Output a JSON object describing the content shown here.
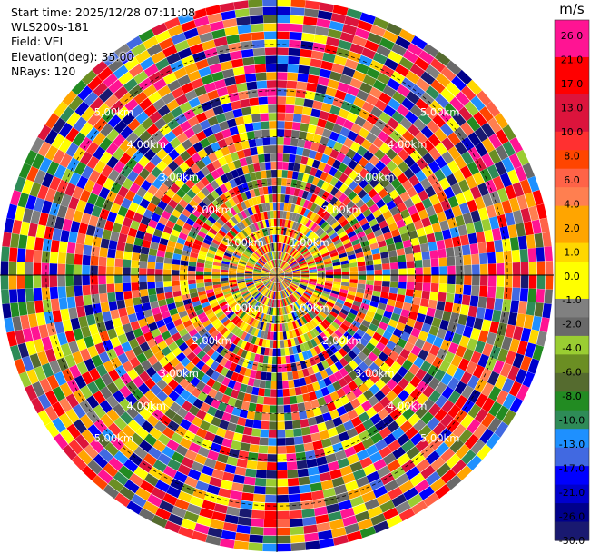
{
  "info": {
    "start_time": "Start time: 2025/12/28 07:11:08",
    "station": "WLS200s-181",
    "field": "Field: VEL",
    "elevation": "Elevation(deg): 35.00",
    "nrays": "NRays: 120"
  },
  "chart_data": {
    "type": "heatmap",
    "projection": "polar-ppi",
    "field": "VEL",
    "nrays": 120,
    "ring_labels": [
      "1.00km",
      "2.00km",
      "3.00km",
      "4.00km",
      "5.00km"
    ],
    "colorbar": {
      "unit": "m/s",
      "ticks": [
        "26.0",
        "21.0",
        "17.0",
        "13.0",
        "10.0",
        "8.0",
        "6.0",
        "4.0",
        "2.0",
        "1.0",
        "0.0",
        "-1.0",
        "-2.0",
        "-4.0",
        "-6.0",
        "-8.0",
        "-10.0",
        "-13.0",
        "-17.0",
        "-21.0",
        "-26.0",
        "-30.0"
      ],
      "colors": [
        "#ff1493",
        "#ff1493",
        "#ff0000",
        "#ff0000",
        "#dc143c",
        "#dc143c",
        "#ff3030",
        "#ff4500",
        "#ff6347",
        "#ff7f50",
        "#ffa500",
        "#ffa500",
        "#ffd700",
        "#ffff00",
        "#ffff00",
        "#808080",
        "#696969",
        "#9acd32",
        "#6b8e23",
        "#556b2f",
        "#228b22",
        "#2e8b57",
        "#1e90ff",
        "#4169e1",
        "#0000ff",
        "#0000cd",
        "#00008b",
        "#191970"
      ]
    }
  }
}
